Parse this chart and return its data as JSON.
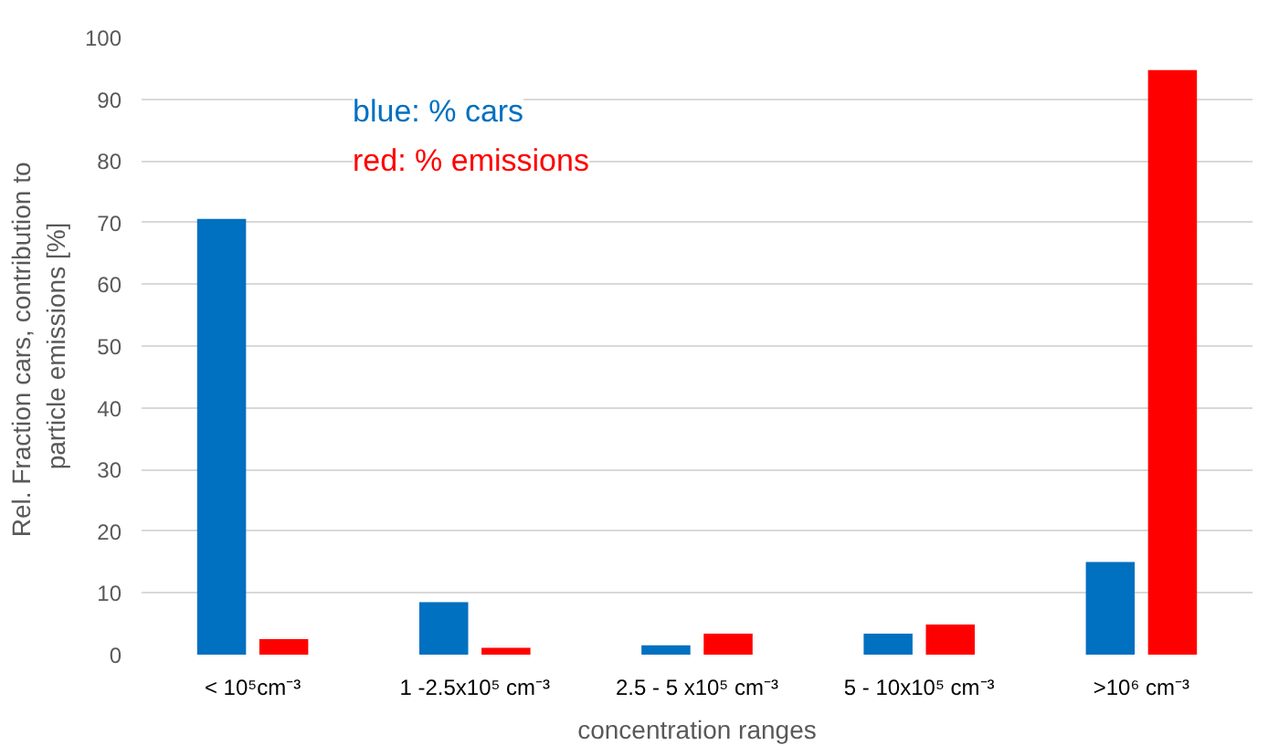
{
  "chart_data": {
    "type": "bar",
    "xlabel": "concentration ranges",
    "ylabel": "Rel. Fraction cars,  contribution to\nparticle emissions [%]",
    "categories": [
      "< 10⁵cm⁻³",
      "1 -2.5x10⁵ cm⁻³",
      "2.5 - 5 x10⁵ cm⁻³",
      "5 - 10x10⁵ cm⁻³",
      ">10⁶ cm⁻³"
    ],
    "series": [
      {
        "color": "#0070c0",
        "values": [
          70.6,
          8.5,
          1.5,
          3.4,
          15.0
        ]
      },
      {
        "color": "#ff0000",
        "values": [
          2.5,
          1.1,
          3.4,
          4.9,
          94.7
        ]
      }
    ],
    "annotations": [
      "blue: % cars",
      "red: % emissions"
    ],
    "ylim": [
      0,
      100
    ],
    "yticks": [
      0,
      10,
      20,
      30,
      40,
      50,
      60,
      70,
      80,
      90,
      100
    ],
    "grid": "y"
  }
}
